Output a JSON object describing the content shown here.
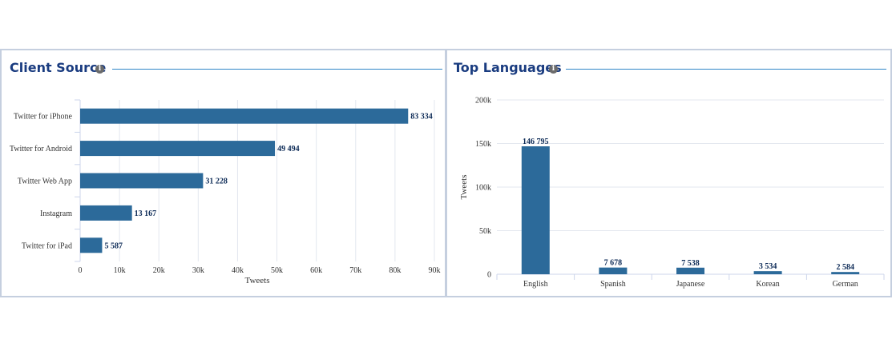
{
  "panels": {
    "client": {
      "title": "Client Source",
      "info_icon": "info-icon"
    },
    "languages": {
      "title": "Top Languages",
      "info_icon": "info-icon"
    }
  },
  "colors": {
    "bar": "#2c6a9a",
    "title": "#1a3c80",
    "rule": "#2e86c8",
    "grid": "#e3e7ef",
    "axis": "#ccd6eb",
    "label": "#333333",
    "data_label": "#0d2b57"
  },
  "chart_data": [
    {
      "type": "bar",
      "orientation": "horizontal",
      "title": "Client Source",
      "categories": [
        "Twitter for iPhone",
        "Twitter for Android",
        "Twitter Web App",
        "Instagram",
        "Twitter for iPad"
      ],
      "values": [
        83334,
        49494,
        31228,
        13167,
        5587
      ],
      "data_labels": [
        "83 334",
        "49 494",
        "31 228",
        "13 167",
        "5 587"
      ],
      "xlabel": "Tweets",
      "ylabel": "",
      "xlim": [
        0,
        90000
      ],
      "ticks": [
        0,
        10000,
        20000,
        30000,
        40000,
        50000,
        60000,
        70000,
        80000,
        90000
      ],
      "tick_labels": [
        "0",
        "10k",
        "20k",
        "30k",
        "40k",
        "50k",
        "60k",
        "70k",
        "80k",
        "90k"
      ],
      "grid": true
    },
    {
      "type": "bar",
      "orientation": "vertical",
      "title": "Top Languages",
      "categories": [
        "English",
        "Spanish",
        "Japanese",
        "Korean",
        "German"
      ],
      "values": [
        146795,
        7678,
        7538,
        3534,
        2584
      ],
      "data_labels": [
        "146 795",
        "7 678",
        "7 538",
        "3 534",
        "2 584"
      ],
      "xlabel": "",
      "ylabel": "Tweets",
      "ylim": [
        0,
        200000
      ],
      "ticks": [
        0,
        50000,
        100000,
        150000,
        200000
      ],
      "tick_labels": [
        "0",
        "50k",
        "100k",
        "150k",
        "200k"
      ],
      "grid": true
    }
  ]
}
